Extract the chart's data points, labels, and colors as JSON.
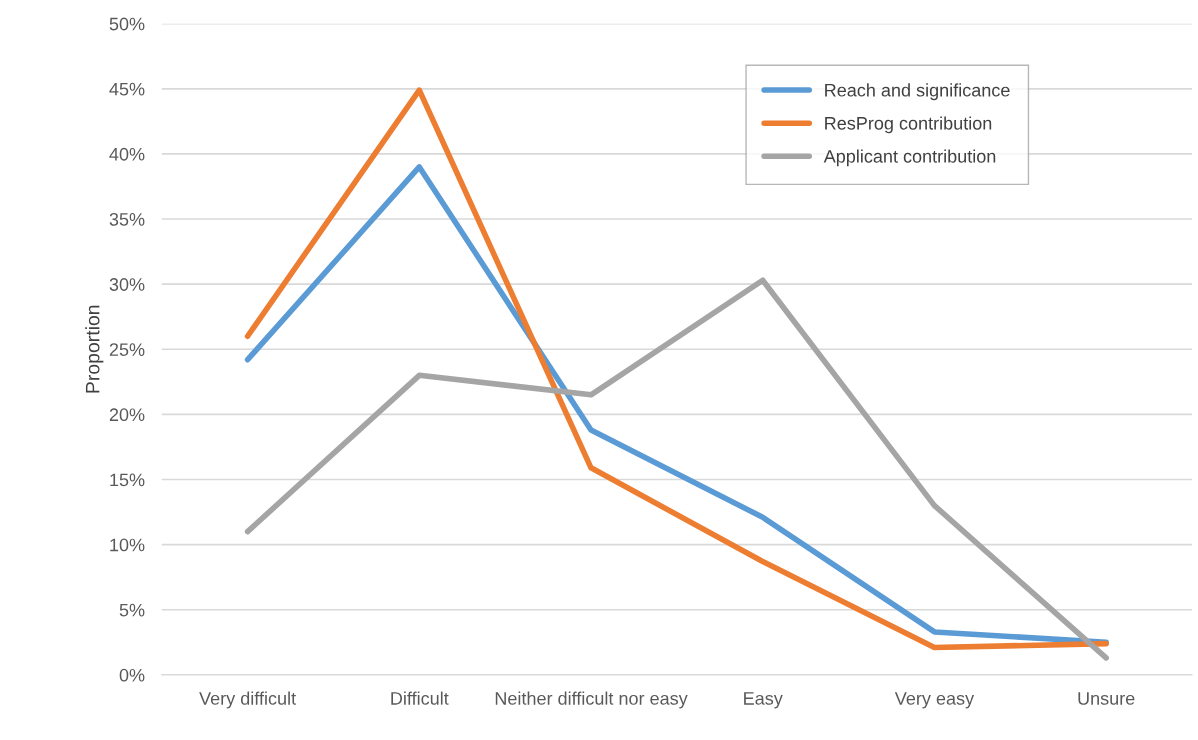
{
  "chart_data": {
    "type": "line",
    "ylabel": "Proportion",
    "categories": [
      "Very difficult",
      "Difficult",
      "Neither difficult nor easy",
      "Easy",
      "Very easy",
      "Unsure"
    ],
    "series": [
      {
        "name": "Reach and significance",
        "color": "#5b9bd5",
        "values": [
          24.2,
          39.0,
          18.8,
          12.1,
          3.3,
          2.5
        ]
      },
      {
        "name": "ResProg contribution",
        "color": "#ed7d31",
        "values": [
          26.0,
          44.9,
          15.9,
          8.7,
          2.1,
          2.4
        ]
      },
      {
        "name": "Applicant contribution",
        "color": "#a5a5a5",
        "values": [
          11.0,
          23.0,
          21.5,
          30.3,
          13.0,
          1.3
        ]
      }
    ],
    "ylim": [
      0,
      50
    ],
    "yticks": [
      {
        "value": 0,
        "label": "0%"
      },
      {
        "value": 5,
        "label": "5%"
      },
      {
        "value": 10,
        "label": "10%"
      },
      {
        "value": 15,
        "label": "15%"
      },
      {
        "value": 20,
        "label": "20%"
      },
      {
        "value": 25,
        "label": "25%"
      },
      {
        "value": 30,
        "label": "30%"
      },
      {
        "value": 35,
        "label": "35%"
      },
      {
        "value": 40,
        "label": "40%"
      },
      {
        "value": 45,
        "label": "45%"
      },
      {
        "value": 50,
        "label": "50%"
      }
    ],
    "grid": "y",
    "legend": "top right"
  }
}
